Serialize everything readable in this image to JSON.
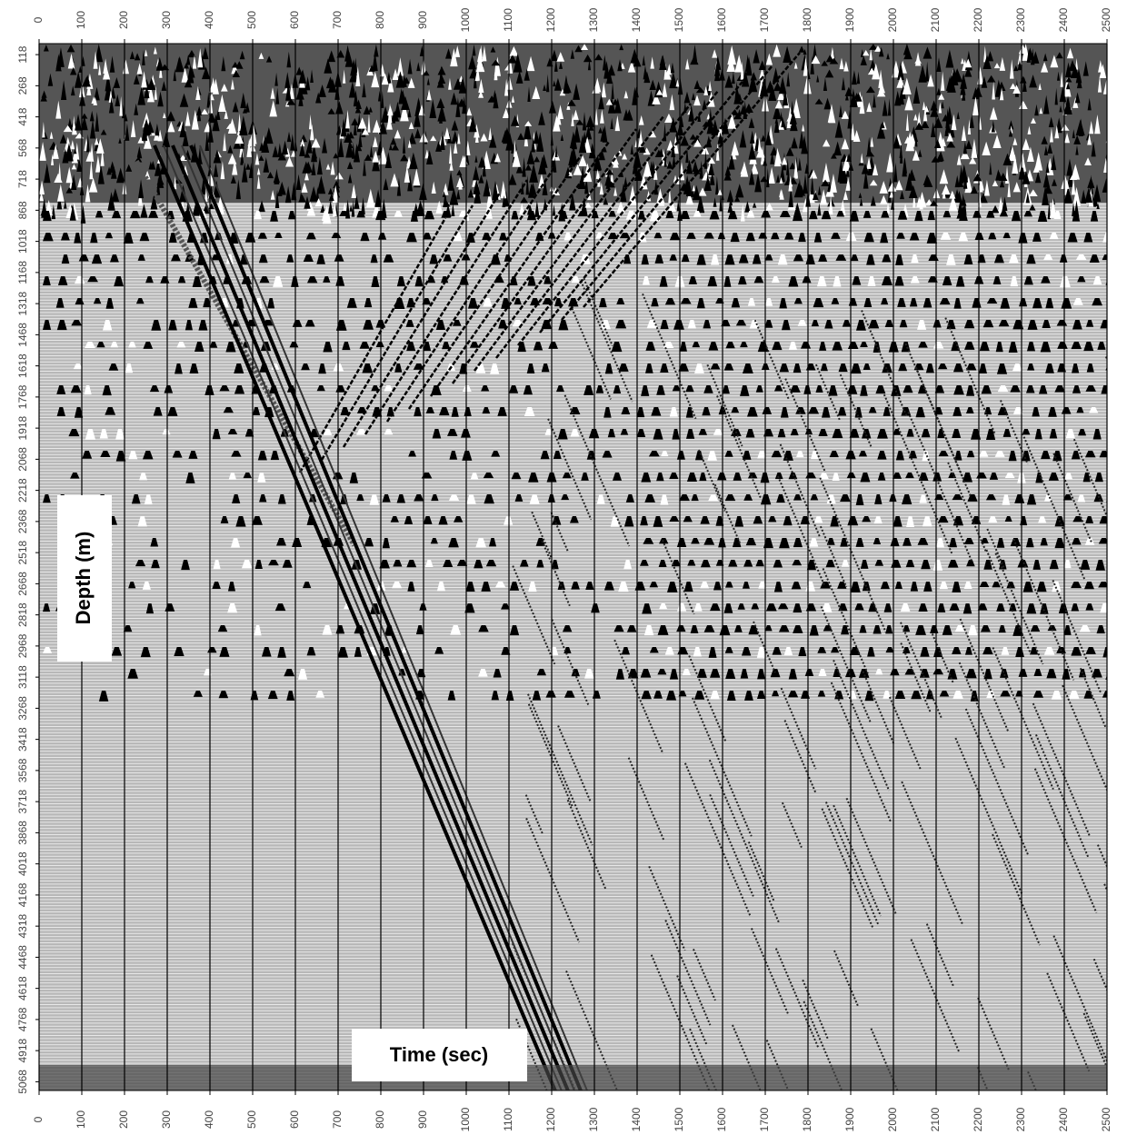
{
  "chart_data": {
    "type": "seismic",
    "x_label": "Time (sec)",
    "y_label": "Depth (m)",
    "xlim": [
      0,
      2500
    ],
    "xticks": [
      0,
      100,
      200,
      300,
      400,
      500,
      600,
      700,
      800,
      900,
      1000,
      1100,
      1200,
      1300,
      1400,
      1500,
      1600,
      1700,
      1800,
      1900,
      2000,
      2100,
      2200,
      2300,
      2400,
      2500
    ],
    "ylim": [
      65,
      5110
    ],
    "y_inverted": true,
    "yticks": [
      118,
      268,
      418,
      568,
      718,
      868,
      1018,
      1168,
      1318,
      1468,
      1618,
      1768,
      1918,
      2068,
      2218,
      2368,
      2518,
      2668,
      2818,
      2968,
      3118,
      3268,
      3418,
      3568,
      3718,
      3868,
      4018,
      4168,
      4318,
      4468,
      4618,
      4768,
      4918,
      5068
    ],
    "grid": true
  }
}
